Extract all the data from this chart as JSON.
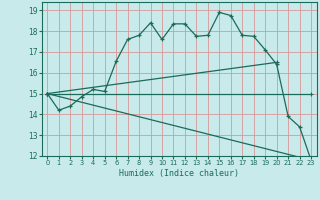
{
  "xlabel": "Humidex (Indice chaleur)",
  "xlim": [
    -0.5,
    23.5
  ],
  "ylim": [
    12,
    19.4
  ],
  "yticks": [
    12,
    13,
    14,
    15,
    16,
    17,
    18,
    19
  ],
  "xticks": [
    0,
    1,
    2,
    3,
    4,
    5,
    6,
    7,
    8,
    9,
    10,
    11,
    12,
    13,
    14,
    15,
    16,
    17,
    18,
    19,
    20,
    21,
    22,
    23
  ],
  "bg_color": "#c8eaea",
  "grid_color": "#d89898",
  "line_color": "#1a6b5a",
  "main_line": {
    "x": [
      0,
      1,
      2,
      3,
      4,
      5,
      6,
      7,
      8,
      9,
      10,
      11,
      12,
      13,
      14,
      15,
      16,
      17,
      18,
      19,
      20,
      21,
      22,
      23
    ],
    "y": [
      15.0,
      14.2,
      14.4,
      14.85,
      15.2,
      15.1,
      16.55,
      17.6,
      17.8,
      18.4,
      17.6,
      18.35,
      18.35,
      17.75,
      17.8,
      18.9,
      18.75,
      17.8,
      17.75,
      17.1,
      16.4,
      13.9,
      13.4,
      11.8
    ]
  },
  "straight_lines": [
    {
      "x": [
        0,
        20
      ],
      "y": [
        15.0,
        16.5
      ]
    },
    {
      "x": [
        0,
        23
      ],
      "y": [
        15.0,
        11.8
      ]
    },
    {
      "x": [
        0,
        23
      ],
      "y": [
        15.0,
        15.0
      ]
    }
  ]
}
